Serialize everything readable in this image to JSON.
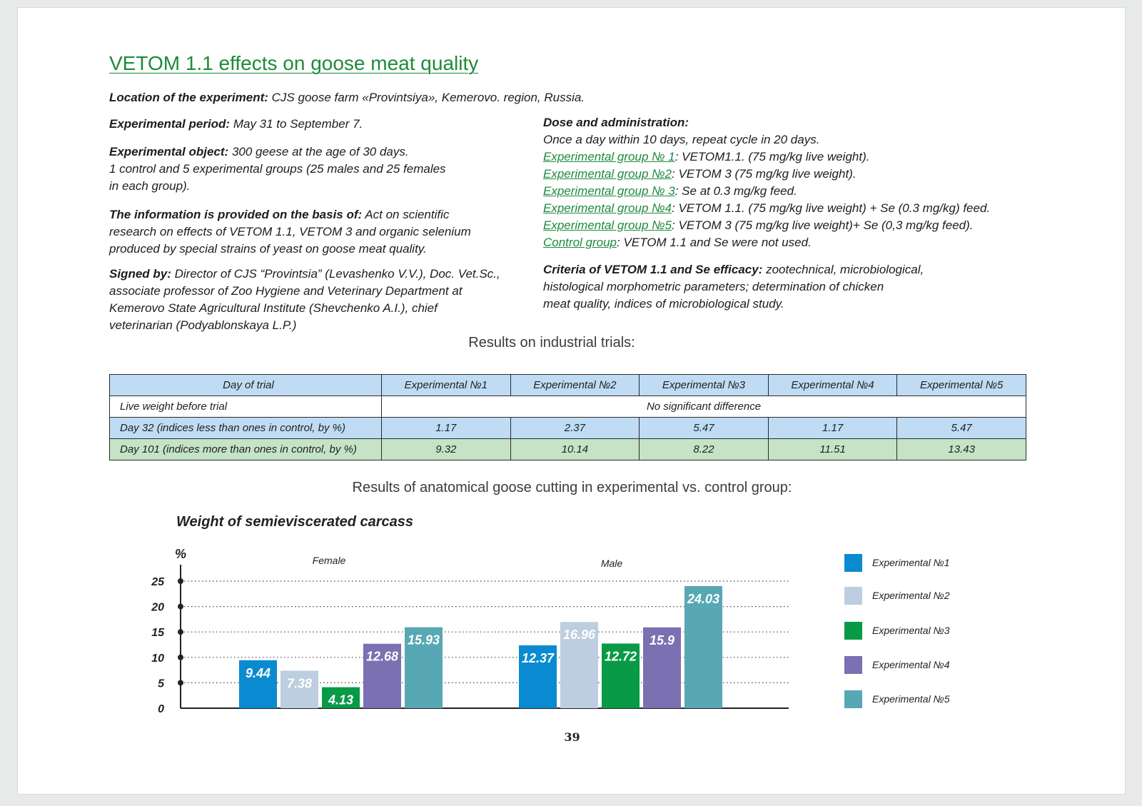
{
  "title": "VETOM 1.1 effects on goose meat quality",
  "location": {
    "label": "Location of the experiment:",
    "text": " CJS goose farm «Provintsiya», Kemerovo. region, Russia."
  },
  "period": {
    "label": "Experimental period:",
    "text": " May 31 to September 7."
  },
  "object": {
    "label": "Experimental object:",
    "line1": " 300 geese at the age of 30 days.",
    "line2": "1 control and 5 experimental groups (25 males and 25 females",
    "line3": "in each group)."
  },
  "basis": {
    "label": "The information is provided on the basis of:",
    "line1": " Act on scientific",
    "line2": "research on effects of VETOM 1.1, VETOM 3 and organic selenium",
    "line3": "produced by special strains of yeast on goose meat quality."
  },
  "signed": {
    "label": "Signed by:",
    "line1": " Director of CJS “Provintsia” (Levashenko V.V.), Doc. Vet.Sc.,",
    "line2": "associate professor of Zoo Hygiene and Veterinary Department at",
    "line3": "Kemerovo State Agricultural Institute (Shevchenko A.I.), chief",
    "line4": "veterinarian (Podyablonskaya L.P.)"
  },
  "dose": {
    "label": "Dose and administration:",
    "line1": "Once a day within 10 days, repeat cycle in 20 days.",
    "groups": [
      {
        "name": "Experimental group № 1",
        "text": ": VETOM1.1. (75 mg/kg live weight)."
      },
      {
        "name": "Experimental group №2",
        "text": ": VETOM 3 (75 mg/kg live weight)."
      },
      {
        "name": "Experimental group № 3",
        "text": ": Se at 0.3 mg/kg feed."
      },
      {
        "name": "Experimental group №4",
        "text": ": VETOM 1.1. (75 mg/kg live weight) + Se (0.3 mg/kg) feed."
      },
      {
        "name": "Experimental group №5",
        "text": ": VETOM 3 (75 mg/kg live weight)+ Se (0,3 mg/kg feed)."
      },
      {
        "name": "Control group",
        "text": ": VETOM 1.1 and Se were not used."
      }
    ]
  },
  "criteria": {
    "label": "Criteria of VETOM 1.1 and Se efficacy:",
    "line1": " zootechnical, microbiological,",
    "line2": "histological morphometric parameters; determination of chicken",
    "line3": "meat quality, indices of microbiological study."
  },
  "results_heading": "Results on industrial trials:",
  "table": {
    "headers": [
      "Day of trial",
      "Experimental №1",
      "Experimental №2",
      "Experimental №3",
      "Experimental №4",
      "Experimental №5"
    ],
    "row1": {
      "label": "Live weight before trial",
      "value": "No significant difference"
    },
    "row2": {
      "label": "Day 32 (indices less than ones in control, by %)",
      "values": [
        "1.17",
        "2.37",
        "5.47",
        "1.17",
        "5.47"
      ]
    },
    "row3": {
      "label": "Day 101 (indices more than ones in control, by %)",
      "values": [
        "9.32",
        "10.14",
        "8.22",
        "11.51",
        "13.43"
      ]
    }
  },
  "cutting_heading": "Results of anatomical goose cutting in experimental vs. control group:",
  "chart_data": {
    "type": "bar",
    "title": "Weight of semieviscerated carcass",
    "ylabel": "%",
    "xlabel": "",
    "ylim": [
      0,
      25
    ],
    "yticks": [
      0,
      5,
      10,
      15,
      20,
      25
    ],
    "grid": true,
    "legend_position": "right",
    "categories": [
      "Female",
      "Male"
    ],
    "series": [
      {
        "name": "Experimental №1",
        "values": [
          9.44,
          12.37
        ],
        "color": "#0a8bd1"
      },
      {
        "name": "Experimental №2",
        "values": [
          7.38,
          16.96
        ],
        "color": "#bccedf"
      },
      {
        "name": "Experimental №3",
        "values": [
          4.13,
          12.72
        ],
        "color": "#089a46"
      },
      {
        "name": "Experimental №4",
        "values": [
          12.68,
          15.9
        ],
        "color": "#7a70b2"
      },
      {
        "name": "Experimental №5",
        "values": [
          15.93,
          24.03
        ],
        "color": "#57a8b4"
      }
    ]
  },
  "page_number": "39"
}
